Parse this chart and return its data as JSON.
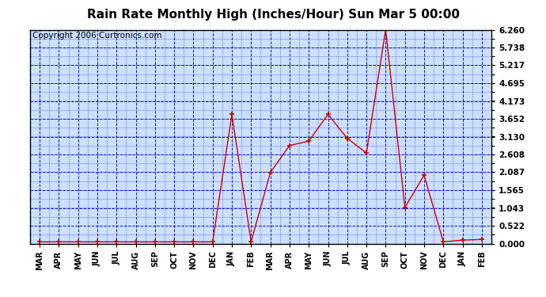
{
  "title": "Rain Rate Monthly High (Inches/Hour) Sun Mar 5 00:00",
  "copyright": "Copyright 2006 Curtronics.com",
  "x_labels": [
    "MAR",
    "APR",
    "MAY",
    "JUN",
    "JUL",
    "AUG",
    "SEP",
    "OCT",
    "NOV",
    "DEC",
    "JAN",
    "FEB",
    "MAR",
    "APR",
    "MAY",
    "JUN",
    "JUL",
    "AUG",
    "SEP",
    "OCT",
    "NOV",
    "DEC",
    "JAN",
    "FEB"
  ],
  "y_values": [
    0.05,
    0.05,
    0.05,
    0.05,
    0.05,
    0.05,
    0.05,
    0.05,
    0.05,
    0.05,
    3.78,
    0.05,
    2.08,
    2.87,
    3.0,
    3.78,
    3.08,
    2.65,
    6.26,
    1.06,
    2.0,
    0.05,
    0.1,
    0.12
  ],
  "y_ticks": [
    0.0,
    0.522,
    1.043,
    1.565,
    2.087,
    2.608,
    3.13,
    3.652,
    4.173,
    4.695,
    5.217,
    5.738,
    6.26
  ],
  "y_min": 0.0,
  "y_max": 6.26,
  "line_color": "#cc0000",
  "marker_color": "#cc0000",
  "outer_bg": "#ffffff",
  "plot_bg": "#cce0ff",
  "grid_color": "#0000bb",
  "title_fontsize": 11,
  "copyright_fontsize": 7.5
}
